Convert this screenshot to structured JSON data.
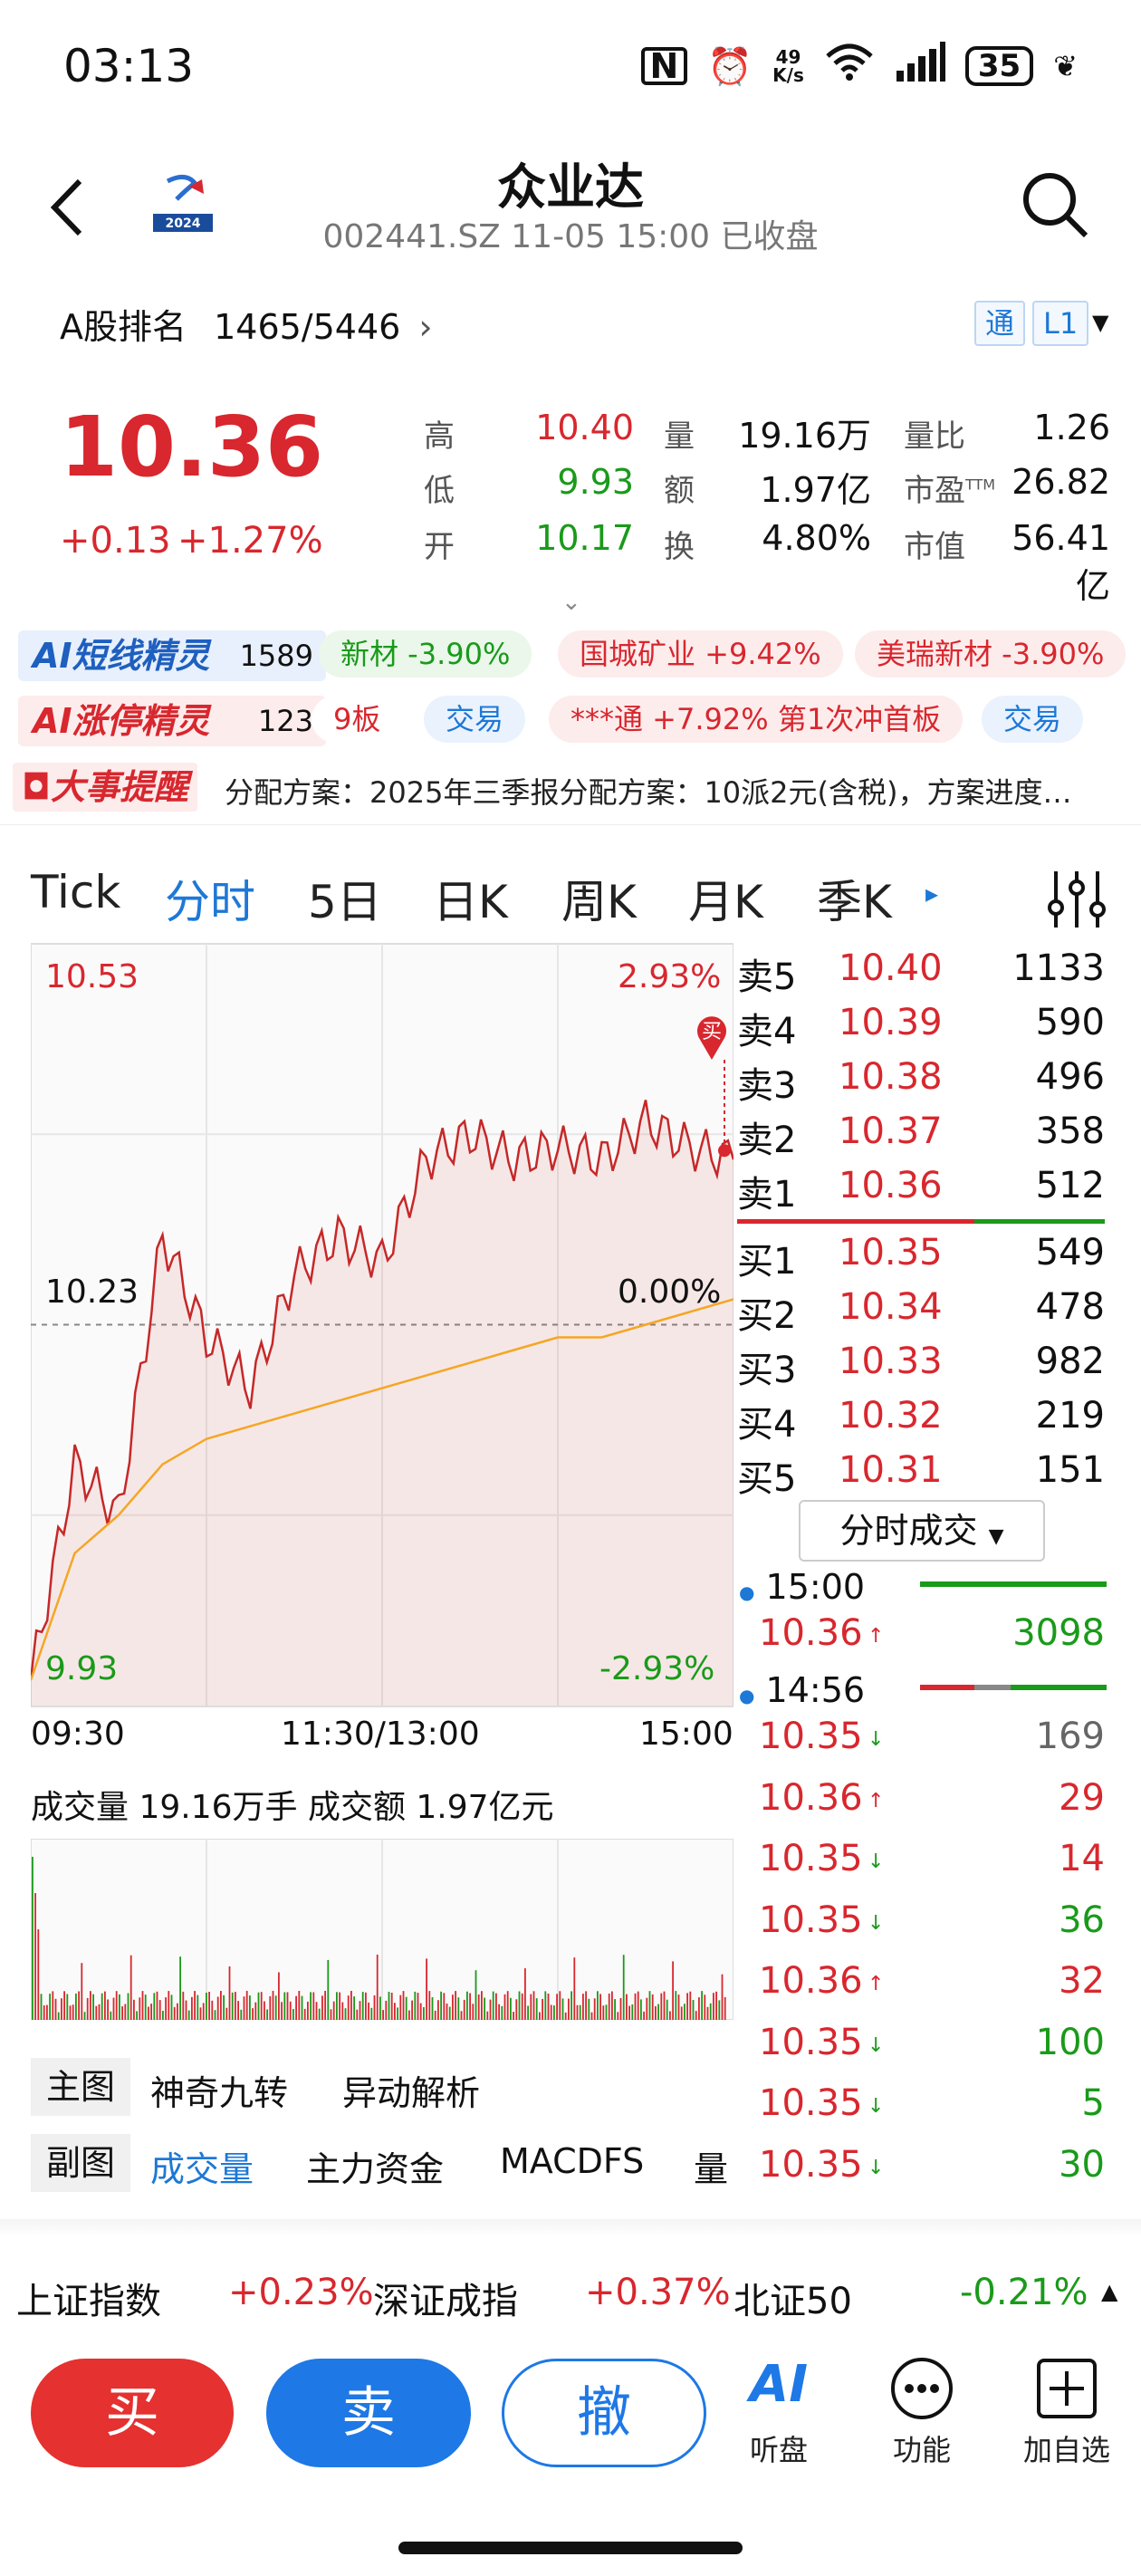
{
  "status_bar": {
    "time": "03:13",
    "net_speed_top": "49",
    "net_speed_unit": "K/s",
    "battery": "35"
  },
  "header": {
    "title": "众业达",
    "subtitle": "002441.SZ  11-05 15:00  已收盘",
    "logo_text": "2024"
  },
  "rank": {
    "label": "A股排名",
    "value": "1465/5446",
    "tag1": "通",
    "tag2": "L1"
  },
  "quote": {
    "price": "10.36",
    "change": "+0.13",
    "change_pct": "+1.27%",
    "high_label": "高",
    "high": "10.40",
    "low_label": "低",
    "low": "9.93",
    "open_label": "开",
    "open": "10.17",
    "vol_label": "量",
    "vol": "19.16万",
    "amt_label": "额",
    "amt": "1.97亿",
    "turn_label": "换",
    "turn": "4.80%",
    "ratio_label": "量比",
    "ratio": "1.26",
    "pe_label": "市盈",
    "pe_sup": "TTM",
    "pe": "26.82",
    "cap_label": "市值",
    "cap": "56.41亿"
  },
  "ai_short": {
    "badge": "AI短线精灵",
    "count": "1589",
    "pills": [
      "新材 -3.90%",
      "国城矿业 +9.42%",
      "美瑞新材 -3.90%"
    ]
  },
  "ai_limit": {
    "badge": "AI涨停精灵",
    "count": "123",
    "pills": [
      "9板",
      "交易",
      "***通 +7.92% 第1次冲首板",
      "交易"
    ]
  },
  "event": {
    "badge": "大事提醒",
    "text": "分配方案：2025年三季报分配方案：10派2元(含税)，方案进度…"
  },
  "tabs": [
    "Tick",
    "分时",
    "5日",
    "日K",
    "周K",
    "月K",
    "季K"
  ],
  "chart": {
    "y_top": "10.53",
    "y_mid": "10.23",
    "y_bot": "9.93",
    "pct_top": "2.93%",
    "pct_mid": "0.00%",
    "pct_bot": "-2.93%",
    "x_start": "09:30",
    "x_mid": "11:30/13:00",
    "x_end": "15:00",
    "buy_marker": "买",
    "vol_text": "成交量 19.16万手  成交额 1.97亿元"
  },
  "chart_data": {
    "type": "line",
    "title": "",
    "x": [
      "09:30",
      "09:45",
      "10:00",
      "10:15",
      "10:30",
      "10:45",
      "11:00",
      "11:15",
      "11:30",
      "13:15",
      "13:30",
      "13:45",
      "14:00",
      "14:15",
      "14:30",
      "14:45",
      "15:00"
    ],
    "series": [
      {
        "values": [
          9.95,
          10.12,
          10.08,
          10.3,
          10.22,
          10.18,
          10.27,
          10.3,
          10.28,
          10.36,
          10.38,
          10.36,
          10.37,
          10.36,
          10.39,
          10.37,
          10.36
        ]
      },
      {
        "values": [
          9.95,
          10.05,
          10.08,
          10.12,
          10.14,
          10.15,
          10.16,
          10.17,
          10.18,
          10.19,
          10.2,
          10.21,
          10.22,
          10.22,
          10.23,
          10.24,
          10.25
        ]
      }
    ],
    "ylim": [
      9.93,
      10.53
    ]
  },
  "order_book": {
    "asks": [
      {
        "label": "卖5",
        "price": "10.40",
        "vol": "1133"
      },
      {
        "label": "卖4",
        "price": "10.39",
        "vol": "590"
      },
      {
        "label": "卖3",
        "price": "10.38",
        "vol": "496"
      },
      {
        "label": "卖2",
        "price": "10.37",
        "vol": "358"
      },
      {
        "label": "卖1",
        "price": "10.36",
        "vol": "512"
      }
    ],
    "bids": [
      {
        "label": "买1",
        "price": "10.35",
        "vol": "549"
      },
      {
        "label": "买2",
        "price": "10.34",
        "vol": "478"
      },
      {
        "label": "买3",
        "price": "10.33",
        "vol": "982"
      },
      {
        "label": "买4",
        "price": "10.32",
        "vol": "219"
      },
      {
        "label": "买5",
        "price": "10.31",
        "vol": "151"
      }
    ],
    "dropdown": "分时成交"
  },
  "ticks": {
    "t1": "15:00",
    "t2": "14:56",
    "rows": [
      {
        "price": "10.36",
        "dir": "up",
        "vol": "3098",
        "color": "#1a9a1a"
      },
      {
        "price": "10.35",
        "dir": "down",
        "vol": "169",
        "color": "#666666"
      },
      {
        "price": "10.36",
        "dir": "up",
        "vol": "29",
        "color": "#d8272e"
      },
      {
        "price": "10.35",
        "dir": "down",
        "vol": "14",
        "color": "#d8272e"
      },
      {
        "price": "10.35",
        "dir": "down",
        "vol": "36",
        "color": "#1a9a1a"
      },
      {
        "price": "10.36",
        "dir": "up",
        "vol": "32",
        "color": "#d8272e"
      },
      {
        "price": "10.35",
        "dir": "down",
        "vol": "100",
        "color": "#1a9a1a"
      },
      {
        "price": "10.35",
        "dir": "down",
        "vol": "5",
        "color": "#1a9a1a"
      },
      {
        "price": "10.35",
        "dir": "down",
        "vol": "30",
        "color": "#1a9a1a"
      }
    ]
  },
  "indicators": {
    "main_label": "主图",
    "main_items": [
      "神奇九转",
      "异动解析"
    ],
    "sub_label": "副图",
    "sub_items": [
      "成交量",
      "主力资金",
      "MACDFS",
      "量"
    ]
  },
  "indices": [
    {
      "name": "上证指数",
      "pct": "+0.23%"
    },
    {
      "name": "深证成指",
      "pct": "+0.37%"
    },
    {
      "name": "北证50",
      "pct": "-0.21%"
    }
  ],
  "actions": {
    "buy": "买",
    "sell": "卖",
    "cancel": "撤",
    "ai_label": "听盘",
    "more_label": "功能",
    "add_label": "加自选"
  }
}
